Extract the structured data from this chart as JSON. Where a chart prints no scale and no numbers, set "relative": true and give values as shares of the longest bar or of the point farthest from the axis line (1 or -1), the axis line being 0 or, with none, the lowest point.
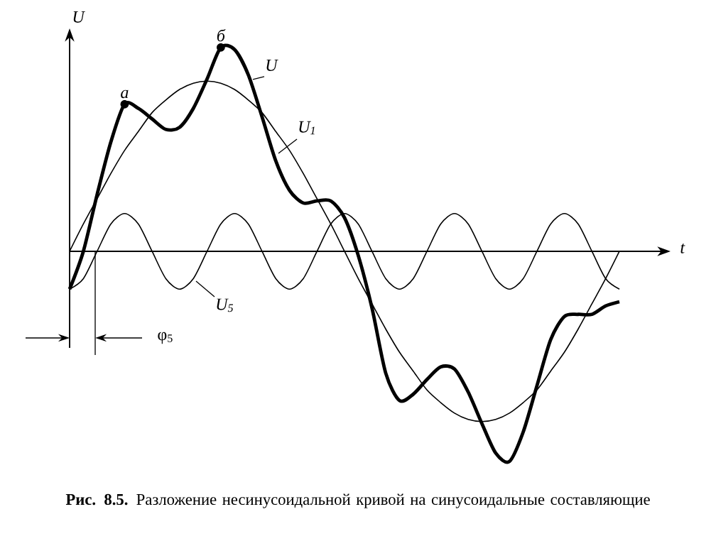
{
  "chart_data": {
    "type": "line",
    "relative": true,
    "xlabel": "t",
    "ylabel": "U",
    "categories": [
      null,
      null,
      null,
      null,
      null,
      null,
      null,
      null,
      null,
      null,
      null,
      null,
      null,
      null,
      null,
      null,
      null,
      null,
      null,
      null,
      null,
      null,
      null,
      null,
      null,
      null,
      null,
      null,
      null,
      null,
      null,
      null,
      null,
      null,
      null,
      null,
      null,
      null,
      null,
      null,
      null
    ],
    "series": [
      {
        "name": "U",
        "color": "#000000",
        "values": [
          -0.18,
          0.0,
          0.27,
          0.52,
          0.7,
          0.68,
          0.63,
          0.58,
          0.59,
          0.68,
          0.82,
          0.97,
          0.96,
          0.84,
          0.64,
          0.43,
          0.29,
          0.23,
          0.24,
          0.24,
          0.16,
          -0.02,
          -0.27,
          -0.58,
          -0.71,
          -0.68,
          -0.61,
          -0.55,
          -0.56,
          -0.67,
          -0.82,
          -0.96,
          -1.0,
          -0.86,
          -0.64,
          -0.42,
          -0.31,
          -0.3,
          -0.3,
          -0.26,
          -0.24
        ]
      },
      {
        "name": "U$_{1}$",
        "color": "#000000",
        "values": [
          0,
          0.13,
          0.25,
          0.37,
          0.48,
          0.57,
          0.66,
          0.72,
          0.77,
          0.8,
          0.81,
          0.8,
          0.77,
          0.72,
          0.66,
          0.57,
          0.48,
          0.37,
          0.25,
          0.13,
          0,
          -0.13,
          -0.25,
          -0.37,
          -0.48,
          -0.57,
          -0.66,
          -0.72,
          -0.77,
          -0.8,
          -0.81,
          -0.8,
          -0.77,
          -0.72,
          -0.66,
          -0.57,
          -0.48,
          -0.37,
          -0.25,
          -0.13,
          0
        ]
      },
      {
        "name": "U$_{5}$",
        "color": "#000000",
        "values": [
          -0.18,
          -0.13,
          0,
          0.13,
          0.18,
          0.13,
          0,
          -0.13,
          -0.18,
          -0.13,
          0,
          0.13,
          0.18,
          0.13,
          0,
          -0.13,
          -0.18,
          -0.13,
          0,
          0.13,
          0.18,
          0.13,
          0,
          -0.13,
          -0.18,
          -0.13,
          0,
          0.13,
          0.18,
          0.13,
          0,
          -0.13,
          -0.18,
          -0.13,
          0,
          0.13,
          0.18,
          0.13,
          0,
          -0.13,
          -0.18
        ]
      }
    ],
    "annotations": [
      {
        "text": "а",
        "y": 0.7
      },
      {
        "text": "б",
        "y": 0.97
      },
      "φ$_{5}$",
      "**Рис. 8.5.** Разложение несинусоидальной кривой на синусоидальные составляющие"
    ]
  }
}
